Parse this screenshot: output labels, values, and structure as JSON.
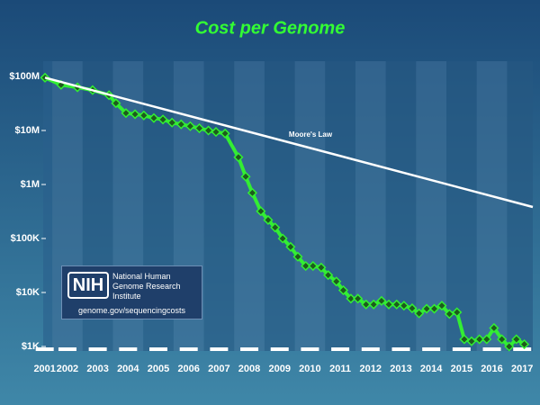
{
  "chart_data": {
    "type": "line",
    "title": "Cost per Genome",
    "log_y": true,
    "xlim": [
      2001.7,
      2017.85
    ],
    "xticks": [
      {
        "value": 2001.75,
        "label": "2001"
      },
      {
        "value": 2002.5,
        "label": "2002"
      },
      {
        "value": 2003.5,
        "label": "2003"
      },
      {
        "value": 2004.5,
        "label": "2004"
      },
      {
        "value": 2005.5,
        "label": "2005"
      },
      {
        "value": 2006.5,
        "label": "2006"
      },
      {
        "value": 2007.5,
        "label": "2007"
      },
      {
        "value": 2008.5,
        "label": "2008"
      },
      {
        "value": 2009.5,
        "label": "2009"
      },
      {
        "value": 2010.5,
        "label": "2010"
      },
      {
        "value": 2011.5,
        "label": "2011"
      },
      {
        "value": 2012.5,
        "label": "2012"
      },
      {
        "value": 2013.5,
        "label": "2013"
      },
      {
        "value": 2014.5,
        "label": "2014"
      },
      {
        "value": 2015.5,
        "label": "2015"
      },
      {
        "value": 2016.5,
        "label": "2016"
      },
      {
        "value": 2017.5,
        "label": "2017"
      }
    ],
    "ylim": [
      1000,
      100000000
    ],
    "yticks": [
      {
        "value": 1000,
        "label": "$1K"
      },
      {
        "value": 10000,
        "label": "$10K"
      },
      {
        "value": 100000,
        "label": "$100K"
      },
      {
        "value": 1000000,
        "label": "$1M"
      },
      {
        "value": 10000000,
        "label": "$10M"
      },
      {
        "value": 100000000,
        "label": "$100M"
      }
    ],
    "series": [
      {
        "color": "#33ee33",
        "x": [
          2001.76,
          2002.29,
          2002.83,
          2003.33,
          2003.87,
          2004.1,
          2004.43,
          2004.73,
          2005.02,
          2005.35,
          2005.65,
          2005.95,
          2006.25,
          2006.55,
          2006.85,
          2007.15,
          2007.4,
          2007.7,
          2008.14,
          2008.38,
          2008.6,
          2008.88,
          2009.12,
          2009.35,
          2009.6,
          2009.86,
          2010.1,
          2010.36,
          2010.6,
          2010.87,
          2011.1,
          2011.37,
          2011.6,
          2011.85,
          2012.08,
          2012.35,
          2012.6,
          2012.86,
          2013.1,
          2013.36,
          2013.6,
          2013.87,
          2014.1,
          2014.35,
          2014.6,
          2014.85,
          2015.1,
          2015.35,
          2015.59,
          2015.83,
          2016.09,
          2016.33,
          2016.57,
          2016.83,
          2017.07,
          2017.31,
          2017.57
        ],
        "values": [
          95000000,
          70000000,
          63000000,
          56000000,
          45000000,
          32000000,
          21000000,
          20000000,
          19000000,
          17000000,
          16000000,
          14000000,
          13000000,
          12000000,
          11000000,
          10000000,
          9400000,
          8800000,
          3200000,
          1400000,
          700000,
          320000,
          220000,
          160000,
          100000,
          70000,
          46000,
          31000,
          31000,
          29000,
          21000,
          16000,
          11000,
          7700,
          7700,
          6000,
          6000,
          7000,
          6000,
          6000,
          5700,
          5100,
          4100,
          5000,
          5000,
          5700,
          4000,
          4300,
          1360,
          1250,
          1360,
          1360,
          2200,
          1360,
          1000,
          1360,
          1100
        ]
      },
      {
        "name": "Moore's Law",
        "color": "#ffffff",
        "x": [
          2001.76,
          2017.85
        ],
        "values": [
          95000000,
          383000
        ]
      }
    ],
    "logo": {
      "mark": "NIH",
      "name": "National Human Genome Research Institute",
      "url": "genome.gov/sequencingcosts"
    }
  }
}
